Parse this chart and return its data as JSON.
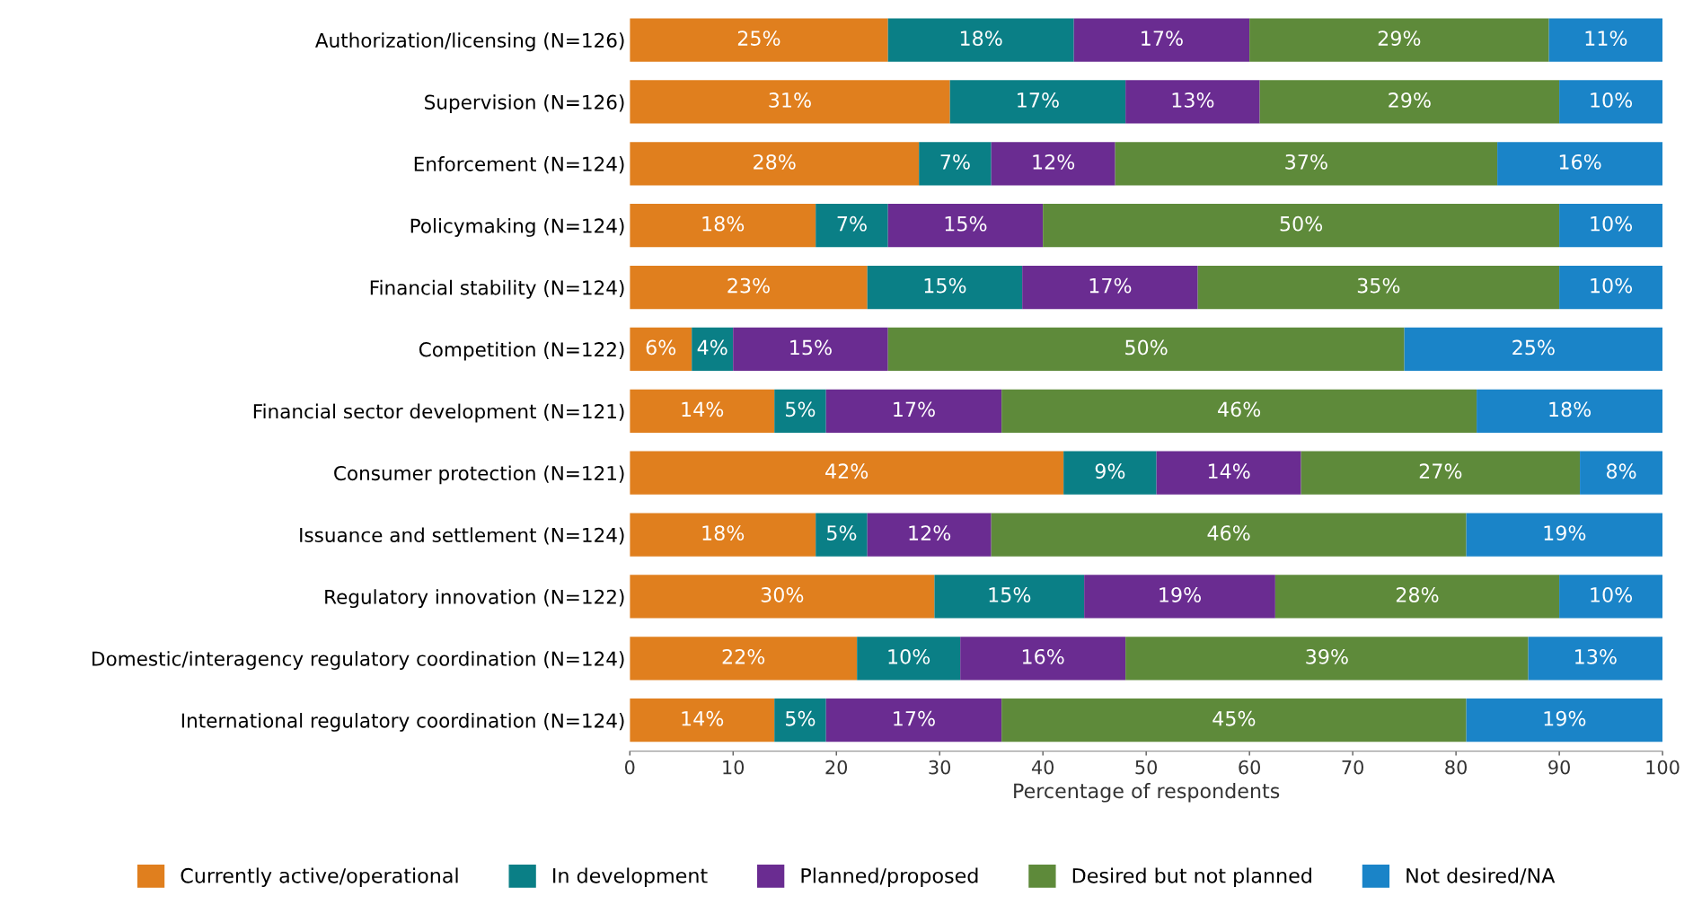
{
  "chart_data": {
    "type": "bar",
    "orientation": "horizontal",
    "stacked": true,
    "categories": [
      "Authorization/licensing (N=126)",
      "Supervision (N=126)",
      "Enforcement (N=124)",
      "Policymaking (N=124)",
      "Financial stability (N=124)",
      "Competition (N=122)",
      "Financial sector development (N=121)",
      "Consumer protection (N=121)",
      "Issuance and settlement (N=124)",
      "Regulatory innovation (N=122)",
      "Domestic/interagency regulatory coordination (N=124)",
      "International regulatory coordination (N=124)"
    ],
    "series": [
      {
        "name": "Currently active/operational",
        "color": "#e07f1e",
        "values": [
          25,
          31,
          28,
          18,
          23,
          6,
          14,
          42,
          18,
          29.5,
          22,
          14
        ],
        "value_labels": [
          "25%",
          "31%",
          "28%",
          "18%",
          "23%",
          "6%",
          "14%",
          "42%",
          "18%",
          "30%",
          "22%",
          "14%"
        ]
      },
      {
        "name": "In development",
        "color": "#0a7f86",
        "values": [
          18,
          17,
          7,
          7,
          15,
          4,
          5,
          9,
          5,
          14.5,
          10,
          5
        ],
        "value_labels": [
          "18%",
          "17%",
          "7%",
          "7%",
          "15%",
          "4%",
          "5%",
          "9%",
          "5%",
          "15%",
          "10%",
          "5%"
        ]
      },
      {
        "name": "Planned/proposed",
        "color": "#6a2c91",
        "values": [
          17,
          13,
          12,
          15,
          17,
          15,
          17,
          14,
          12,
          18.5,
          16,
          17
        ],
        "value_labels": [
          "17%",
          "13%",
          "12%",
          "15%",
          "17%",
          "15%",
          "17%",
          "14%",
          "12%",
          "19%",
          "16%",
          "17%"
        ]
      },
      {
        "name": "Desired but not planned",
        "color": "#5e8a3a",
        "values": [
          29,
          29,
          37,
          50,
          35,
          50,
          46,
          27,
          46,
          27.5,
          39,
          45
        ],
        "value_labels": [
          "29%",
          "29%",
          "37%",
          "50%",
          "35%",
          "50%",
          "46%",
          "27%",
          "46%",
          "28%",
          "39%",
          "45%"
        ]
      },
      {
        "name": "Not desired/NA",
        "color": "#1a84c8",
        "values": [
          11,
          10,
          16,
          10,
          10,
          25,
          18,
          8,
          19,
          10,
          13,
          19
        ],
        "value_labels": [
          "11%",
          "10%",
          "16%",
          "10%",
          "10%",
          "25%",
          "18%",
          "8%",
          "19%",
          "10%",
          "13%",
          "19%"
        ]
      }
    ],
    "xlabel": "Percentage of respondents",
    "xlim": [
      0,
      100
    ],
    "xticks": [
      0,
      10,
      20,
      30,
      40,
      50,
      60,
      70,
      80,
      90,
      100
    ],
    "grid": false,
    "legend": "bottom"
  }
}
